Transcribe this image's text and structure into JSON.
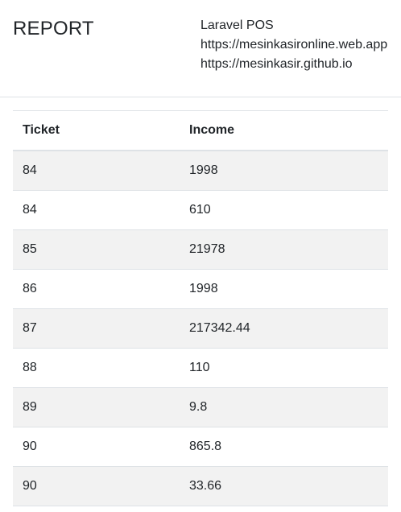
{
  "header": {
    "title": "REPORT",
    "company_lines": [
      "Laravel POS",
      "https://mesinkasironline.web.app",
      "https://mesinkasir.github.io"
    ]
  },
  "table": {
    "columns": [
      "Ticket",
      "Income"
    ],
    "rows": [
      [
        "84",
        "1998"
      ],
      [
        "84",
        "610"
      ],
      [
        "85",
        "21978"
      ],
      [
        "86",
        "1998"
      ],
      [
        "87",
        "217342.44"
      ],
      [
        "88",
        "110"
      ],
      [
        "89",
        "9.8"
      ],
      [
        "90",
        "865.8"
      ],
      [
        "90",
        "33.66"
      ]
    ]
  }
}
